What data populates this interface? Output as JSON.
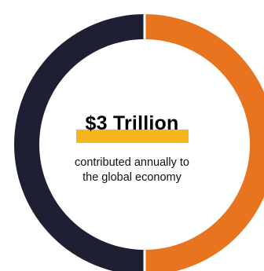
{
  "headline": "$3 Trillion",
  "caption": {
    "line1": "contributed annually to",
    "line2": "the global economy"
  },
  "colors": {
    "left_segment": "#1e1f33",
    "right_segment": "#e8741f",
    "highlight": "#f7b51d",
    "background": "#ffffff"
  },
  "chart_data": {
    "type": "pie",
    "donut": true,
    "values": [
      50,
      50
    ],
    "colors": [
      "#e8741f",
      "#1e1f33"
    ],
    "title": "",
    "center_label": "$3 Trillion",
    "center_sublabel": "contributed annually to the global economy"
  }
}
